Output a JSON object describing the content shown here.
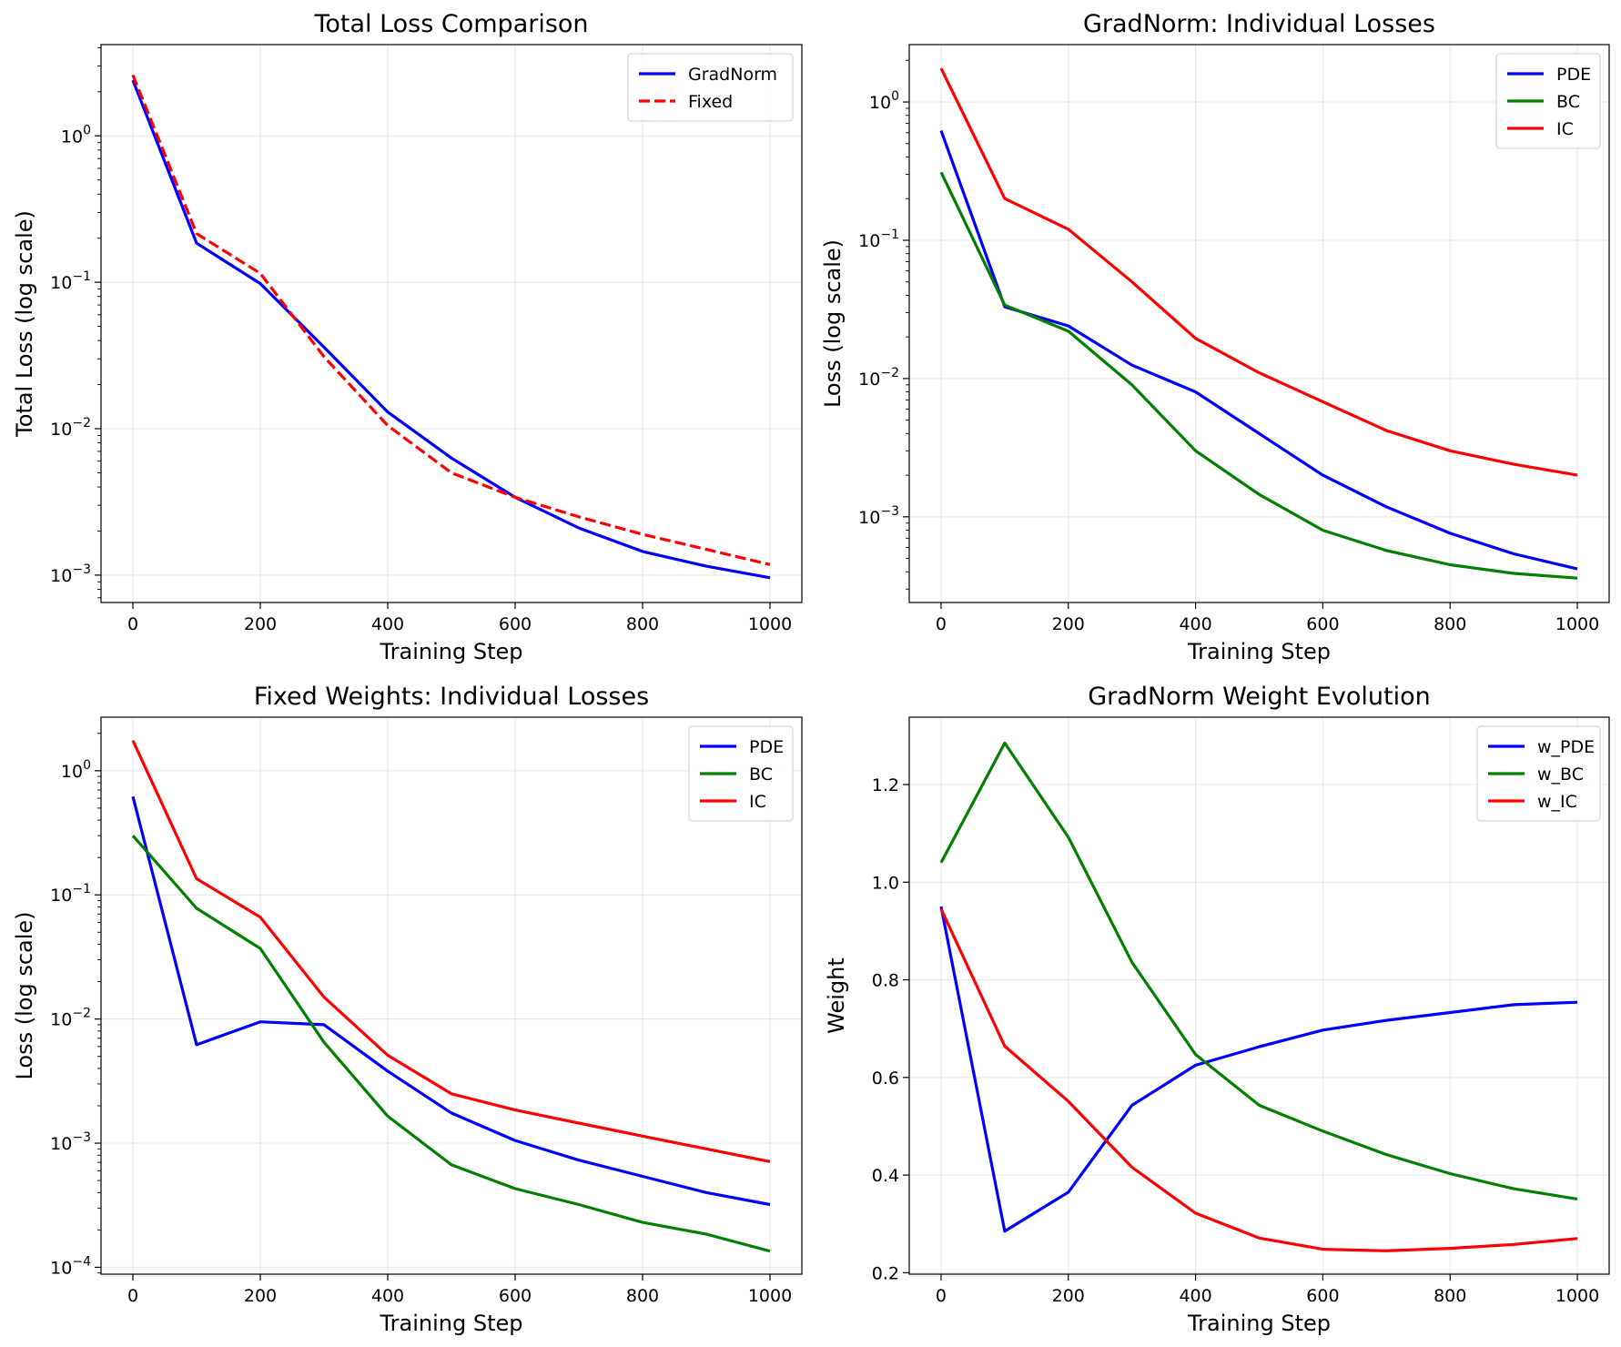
{
  "colors": {
    "blue": "#0000ff",
    "green": "#008000",
    "red": "#ff0000"
  },
  "chart_data": [
    {
      "type": "line",
      "title": "Total Loss Comparison",
      "xlabel": "Training Step",
      "ylabel": "Total Loss (log scale)",
      "yscale": "log",
      "xlim": [
        -50,
        1050
      ],
      "ylim": [
        0.00065,
        4.2
      ],
      "xticks": [
        0,
        200,
        400,
        600,
        800,
        1000
      ],
      "yticks": [
        0.001,
        0.01,
        0.1,
        1
      ],
      "grid": true,
      "legend": "top-right",
      "x": [
        0,
        100,
        200,
        300,
        400,
        500,
        600,
        700,
        800,
        900,
        1000
      ],
      "series": [
        {
          "name": "GradNorm",
          "color": "#0000ff",
          "dash": "solid",
          "values": [
            2.4,
            0.185,
            0.098,
            0.036,
            0.013,
            0.0063,
            0.0034,
            0.0021,
            0.00145,
            0.00115,
            0.00096
          ]
        },
        {
          "name": "Fixed",
          "color": "#ff0000",
          "dash": "dashed",
          "values": [
            2.6,
            0.215,
            0.115,
            0.031,
            0.0105,
            0.005,
            0.0034,
            0.0025,
            0.0019,
            0.0015,
            0.00118
          ]
        }
      ]
    },
    {
      "type": "line",
      "title": "GradNorm: Individual Losses",
      "xlabel": "Training Step",
      "ylabel": "Loss (log scale)",
      "yscale": "log",
      "xlim": [
        -50,
        1050
      ],
      "ylim": [
        0.00024,
        2.6
      ],
      "xticks": [
        0,
        200,
        400,
        600,
        800,
        1000
      ],
      "yticks": [
        0.001,
        0.01,
        0.1,
        1
      ],
      "grid": true,
      "legend": "top-right",
      "x": [
        0,
        100,
        200,
        300,
        400,
        500,
        600,
        700,
        800,
        900,
        1000
      ],
      "series": [
        {
          "name": "PDE",
          "color": "#0000ff",
          "dash": "solid",
          "values": [
            0.62,
            0.033,
            0.024,
            0.0125,
            0.008,
            0.004,
            0.002,
            0.00118,
            0.00076,
            0.00054,
            0.00042
          ]
        },
        {
          "name": "BC",
          "color": "#008000",
          "dash": "solid",
          "values": [
            0.31,
            0.034,
            0.022,
            0.009,
            0.003,
            0.00145,
            0.0008,
            0.00057,
            0.00045,
            0.00039,
            0.00036
          ]
        },
        {
          "name": "IC",
          "color": "#ff0000",
          "dash": "solid",
          "values": [
            1.75,
            0.2,
            0.12,
            0.05,
            0.0195,
            0.011,
            0.0068,
            0.0042,
            0.003,
            0.0024,
            0.002
          ]
        }
      ]
    },
    {
      "type": "line",
      "title": "Fixed Weights: Individual Losses",
      "xlabel": "Training Step",
      "ylabel": "Loss (log scale)",
      "yscale": "log",
      "xlim": [
        -50,
        1050
      ],
      "ylim": [
        8.8e-05,
        2.7
      ],
      "xticks": [
        0,
        200,
        400,
        600,
        800,
        1000
      ],
      "yticks": [
        0.0001,
        0.001,
        0.01,
        0.1,
        1
      ],
      "grid": true,
      "legend": "top-right",
      "x": [
        0,
        100,
        200,
        300,
        400,
        500,
        600,
        700,
        800,
        900,
        1000
      ],
      "series": [
        {
          "name": "PDE",
          "color": "#0000ff",
          "dash": "solid",
          "values": [
            0.62,
            0.0062,
            0.0095,
            0.009,
            0.0038,
            0.00175,
            0.00105,
            0.00073,
            0.00054,
            0.0004,
            0.00032
          ]
        },
        {
          "name": "BC",
          "color": "#008000",
          "dash": "solid",
          "values": [
            0.3,
            0.078,
            0.037,
            0.0065,
            0.00165,
            0.00067,
            0.00043,
            0.00032,
            0.00023,
            0.000185,
            0.000135
          ]
        },
        {
          "name": "IC",
          "color": "#ff0000",
          "dash": "solid",
          "values": [
            1.75,
            0.135,
            0.066,
            0.015,
            0.0051,
            0.0025,
            0.00185,
            0.00145,
            0.00114,
            0.0009,
            0.00071
          ]
        }
      ]
    },
    {
      "type": "line",
      "title": "GradNorm Weight Evolution",
      "xlabel": "Training Step",
      "ylabel": "Weight",
      "yscale": "linear",
      "xlim": [
        -50,
        1050
      ],
      "ylim": [
        0.197,
        1.338
      ],
      "xticks": [
        0,
        200,
        400,
        600,
        800,
        1000
      ],
      "yticks": [
        0.2,
        0.4,
        0.6,
        0.8,
        1.0,
        1.2
      ],
      "grid": true,
      "legend": "top-right",
      "x": [
        0,
        100,
        200,
        300,
        400,
        500,
        600,
        700,
        800,
        900,
        1000
      ],
      "series": [
        {
          "name": "w_PDE",
          "color": "#0000ff",
          "dash": "solid",
          "values": [
            0.95,
            0.285,
            0.365,
            0.543,
            0.625,
            0.663,
            0.697,
            0.717,
            0.733,
            0.749,
            0.754
          ]
        },
        {
          "name": "w_BC",
          "color": "#008000",
          "dash": "solid",
          "values": [
            1.04,
            1.285,
            1.092,
            0.836,
            0.647,
            0.543,
            0.49,
            0.442,
            0.403,
            0.372,
            0.351
          ]
        },
        {
          "name": "w_IC",
          "color": "#ff0000",
          "dash": "solid",
          "values": [
            0.945,
            0.664,
            0.551,
            0.416,
            0.322,
            0.271,
            0.248,
            0.245,
            0.25,
            0.258,
            0.27
          ]
        }
      ]
    }
  ]
}
